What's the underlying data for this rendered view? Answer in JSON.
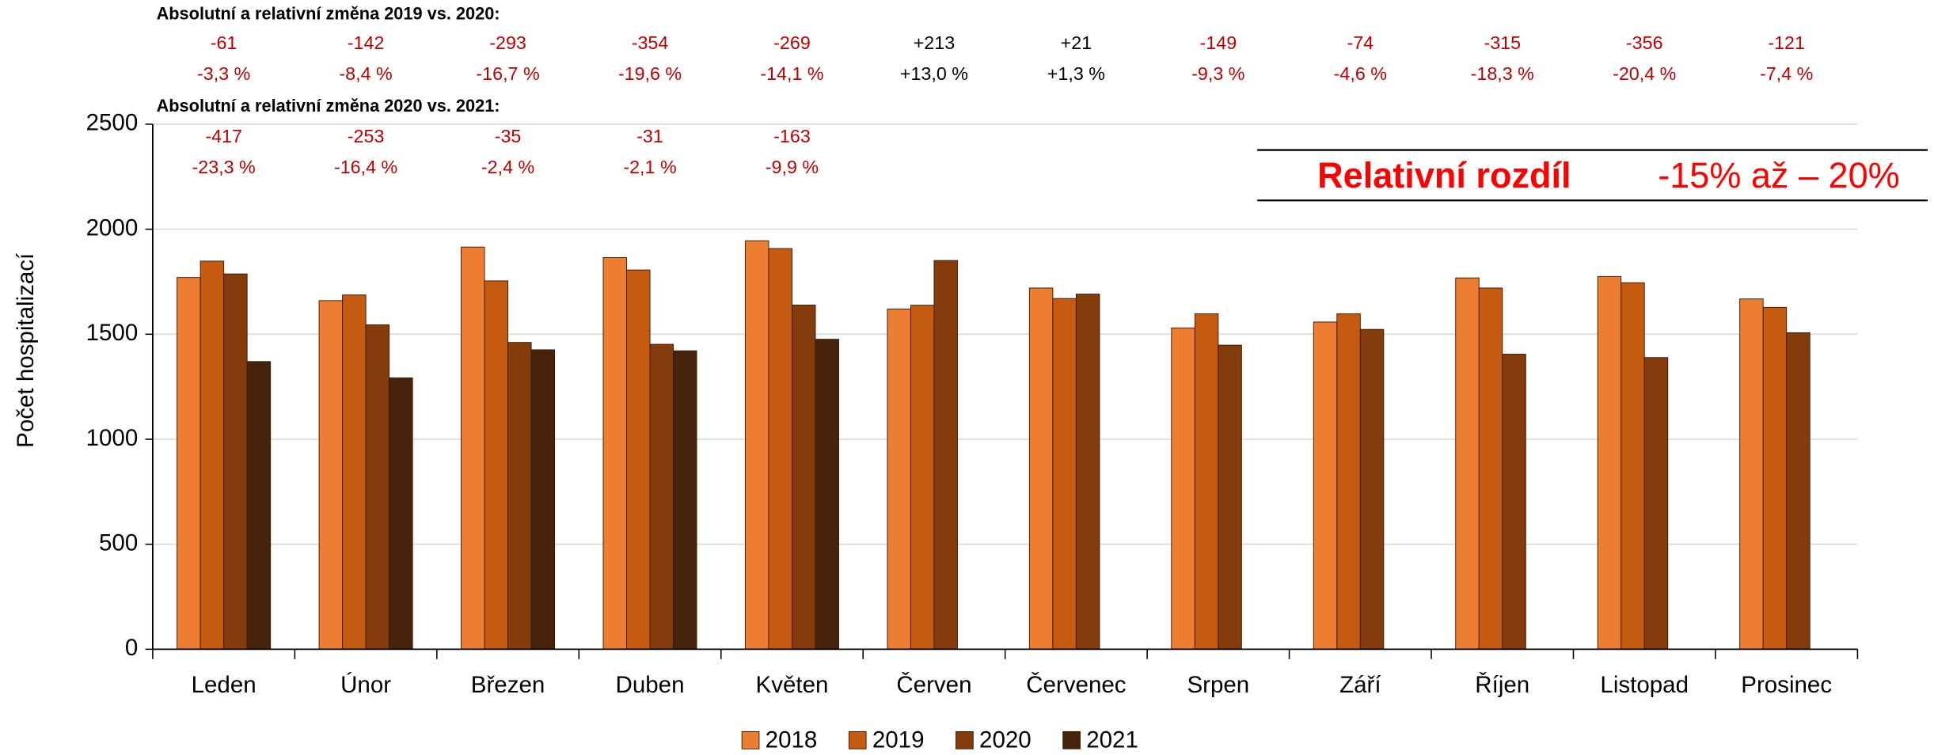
{
  "chart_data": {
    "type": "bar",
    "ylabel": "Počet hospitalizací",
    "categories": [
      "Leden",
      "Únor",
      "Březen",
      "Duben",
      "Květen",
      "Červen",
      "Červenec",
      "Srpen",
      "Září",
      "Říjen",
      "Listopad",
      "Prosinec"
    ],
    "series": [
      {
        "name": "2018",
        "color": "#ed7d31",
        "values": [
          1770,
          1660,
          1915,
          1865,
          1945,
          1620,
          1720,
          1530,
          1558,
          1768,
          1775,
          1668
        ]
      },
      {
        "name": "2019",
        "color": "#c55a11",
        "values": [
          1848,
          1687,
          1754,
          1806,
          1908,
          1638,
          1670,
          1597,
          1597,
          1720,
          1745,
          1628
        ]
      },
      {
        "name": "2020",
        "color": "#843c0c",
        "values": [
          1787,
          1545,
          1461,
          1452,
          1639,
          1851,
          1691,
          1448,
          1523,
          1405,
          1389,
          1507
        ]
      },
      {
        "name": "2021",
        "color": "#46230a",
        "values": [
          1370,
          1292,
          1426,
          1421,
          1476,
          null,
          null,
          null,
          null,
          null,
          null,
          null
        ]
      }
    ],
    "ylim": [
      0,
      2500
    ],
    "yticks": [
      0,
      500,
      1000,
      1500,
      2000,
      2500
    ],
    "grid": true,
    "legend": "bottom",
    "annotations": [
      {
        "title": "Absolutní a relativní změna 2019 vs. 2020:",
        "absolute": [
          "-61",
          "-142",
          "-293",
          "-354",
          "-269",
          "+213",
          "+21",
          "-149",
          "-74",
          "-315",
          "-356",
          "-121"
        ],
        "relative": [
          "-3,3 %",
          "-8,4 %",
          "-16,7 %",
          "-19,6 %",
          "-14,1 %",
          "+13,0 %",
          "+1,3 %",
          "-9,3 %",
          "-4,6 %",
          "-18,3 %",
          "-20,4 %",
          "-7,4 %"
        ]
      },
      {
        "title": "Absolutní a relativní změna 2020 vs. 2021:",
        "absolute": [
          "-417",
          "-253",
          "-35",
          "-31",
          "-163"
        ],
        "relative": [
          "-23,3 %",
          "-16,4 %",
          "-2,4 %",
          "-2,1 %",
          "-9,9 %"
        ]
      }
    ],
    "highlight": {
      "label": "Relativní rozdíl",
      "value": "-15% až – 20%"
    }
  }
}
